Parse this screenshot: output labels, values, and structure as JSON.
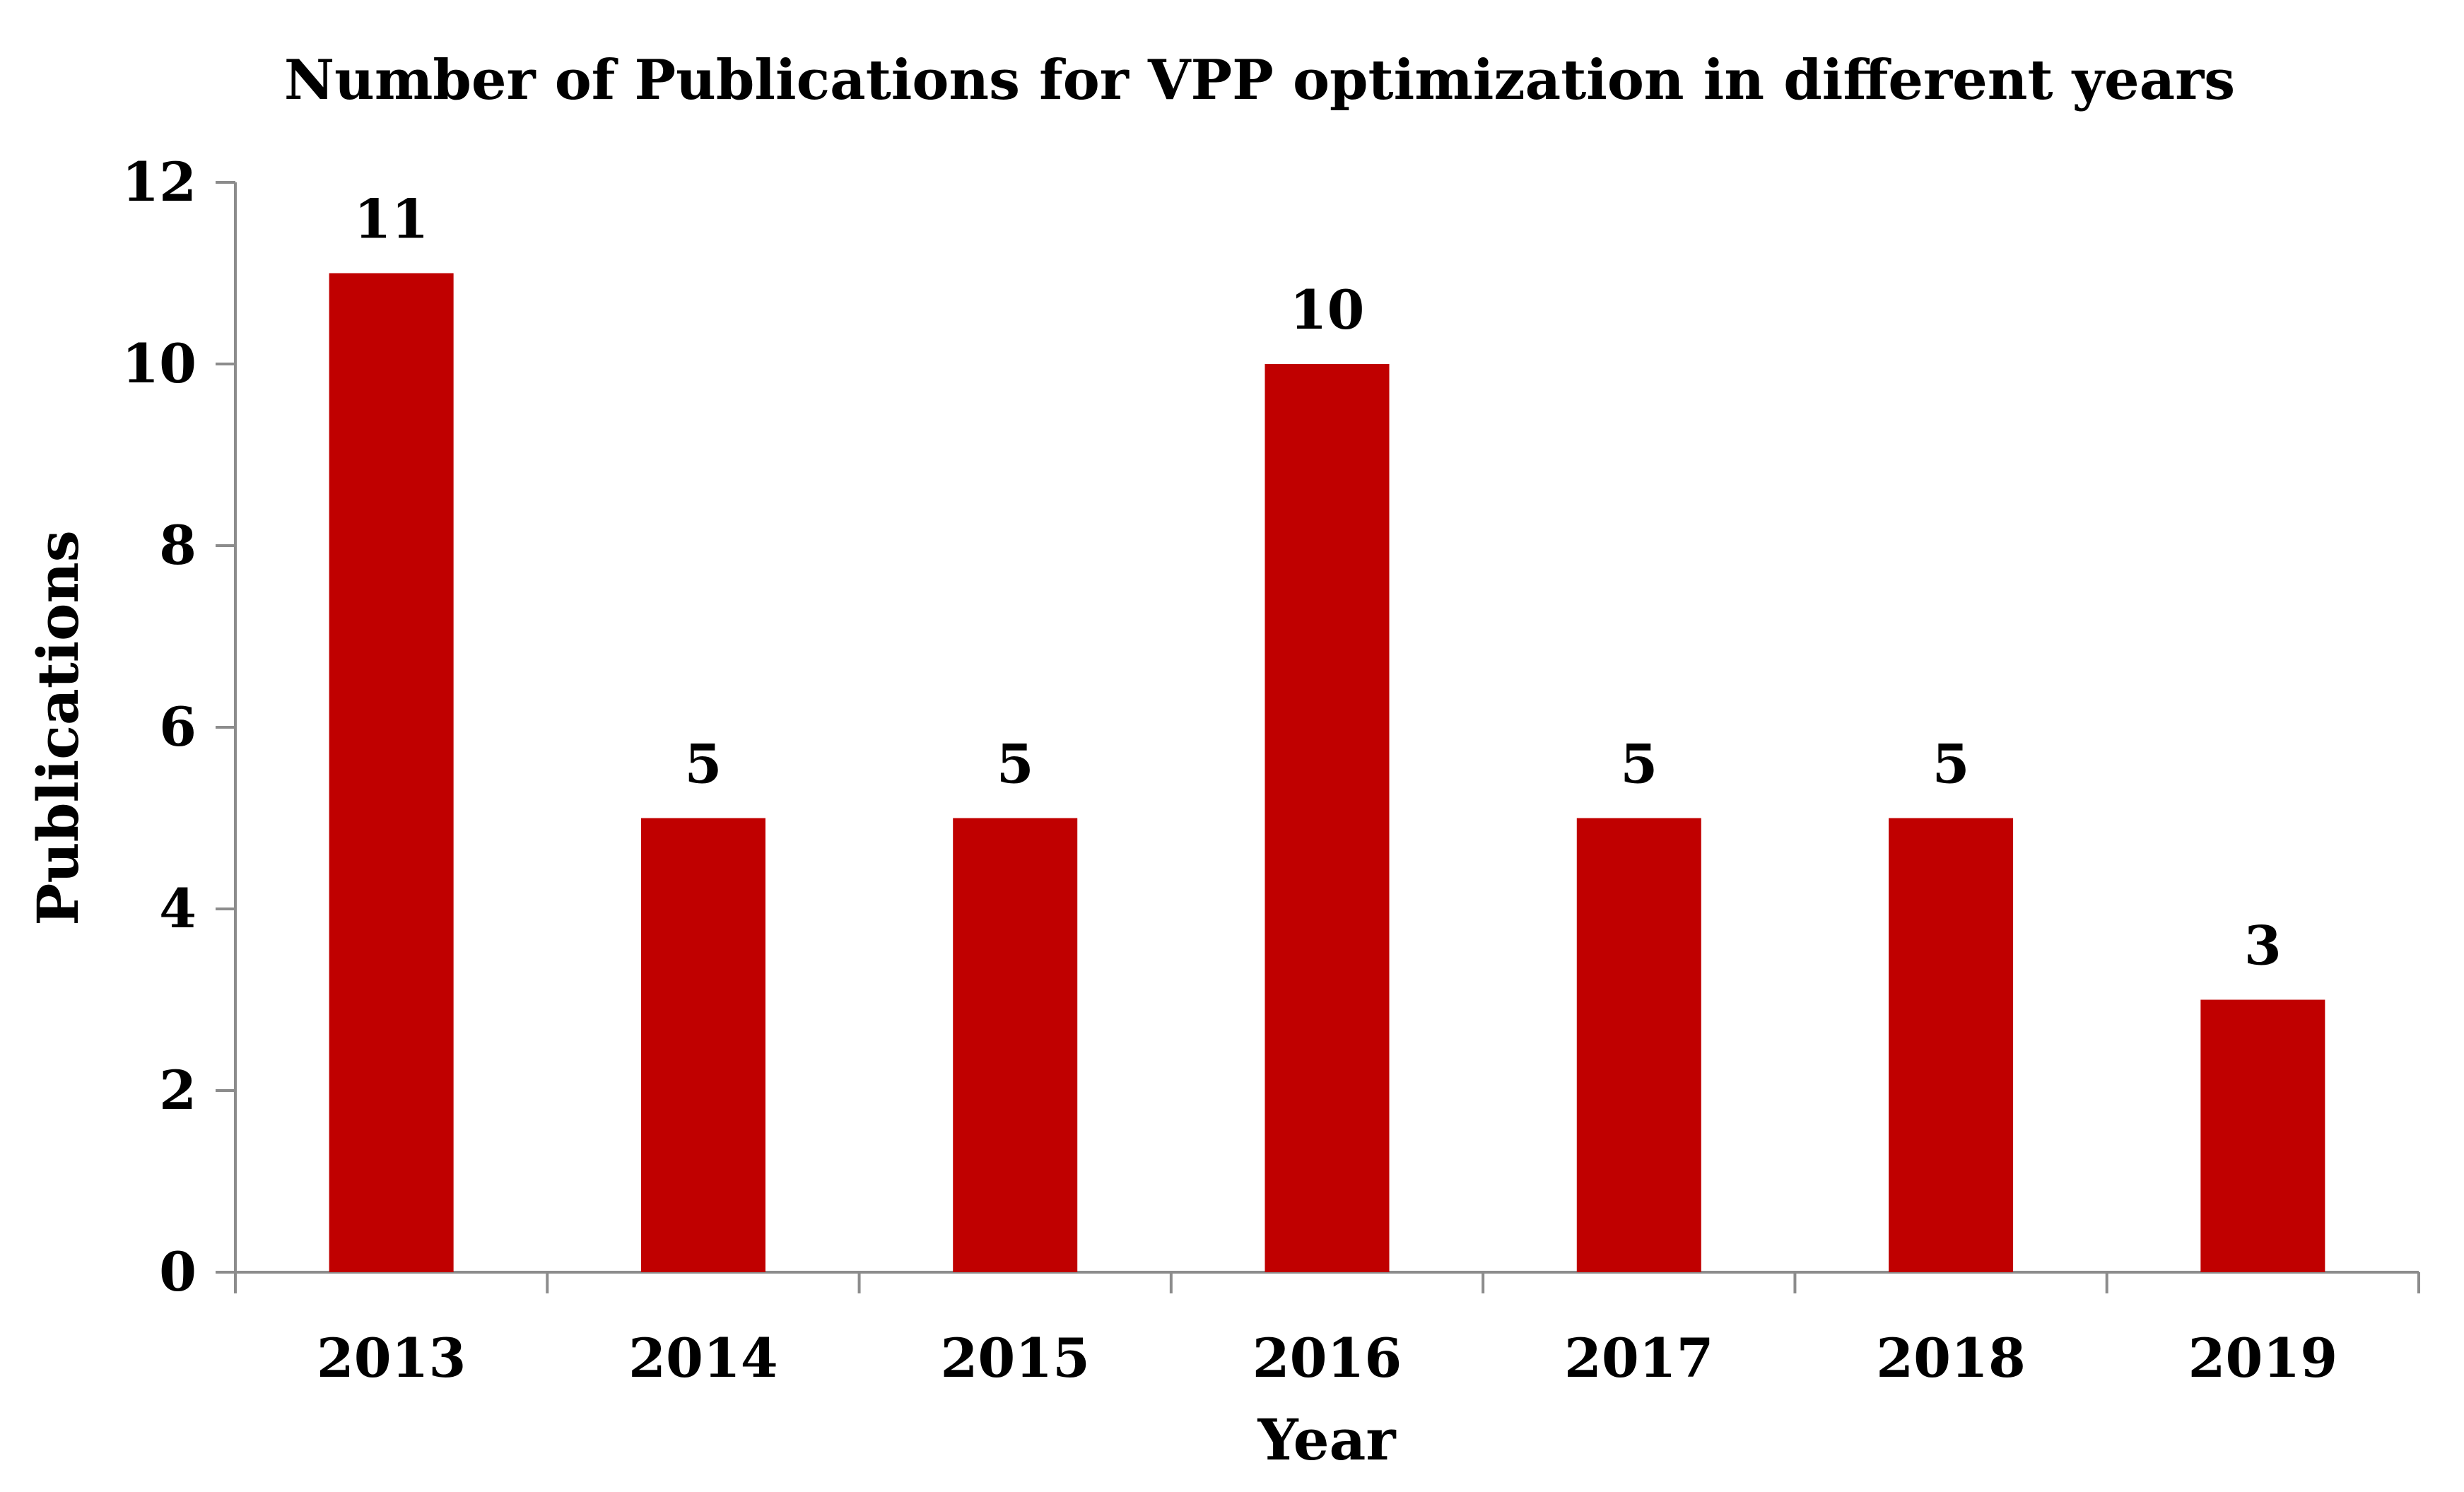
{
  "chart_data": {
    "type": "bar",
    "title": "Number of Publications for VPP optimization in different years",
    "xlabel": "Year",
    "ylabel": "Publications",
    "categories": [
      "2013",
      "2014",
      "2015",
      "2016",
      "2017",
      "2018",
      "2019"
    ],
    "series": [
      {
        "name": "Publications",
        "values": [
          11,
          5,
          5,
          10,
          5,
          5,
          3
        ],
        "color": "#C00000"
      }
    ],
    "data_labels": [
      "11",
      "5",
      "5",
      "10",
      "5",
      "5",
      "3"
    ],
    "ylim": [
      0,
      12
    ],
    "yticks": [
      0,
      2,
      4,
      6,
      8,
      10,
      12
    ],
    "ytick_labels": [
      "0",
      "2",
      "4",
      "6",
      "8",
      "10",
      "12"
    ],
    "grid": false,
    "legend": "none"
  }
}
